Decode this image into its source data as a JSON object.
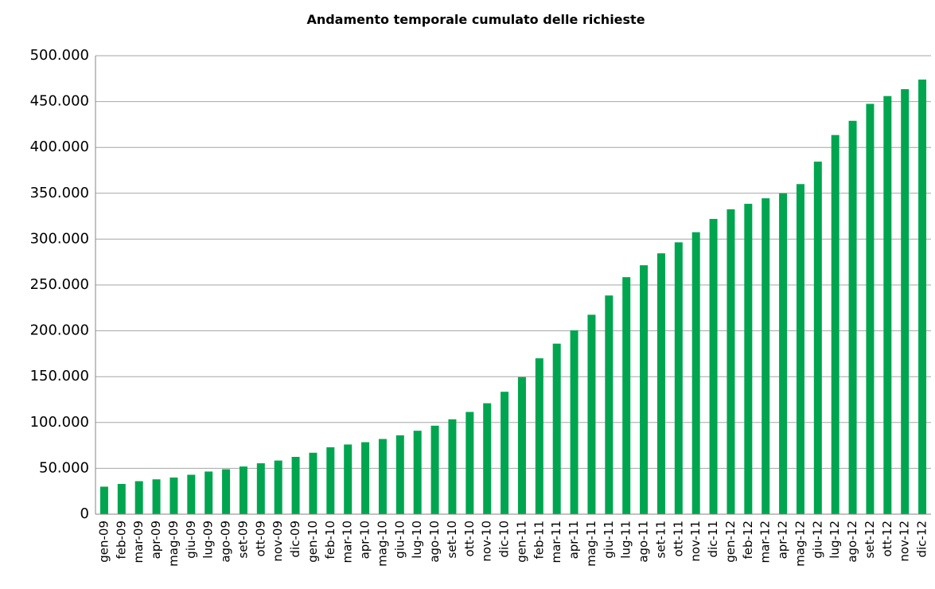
{
  "chart_data": {
    "type": "bar",
    "title": "Andamento temporale cumulato delle richieste",
    "categories": [
      "gen-09",
      "feb-09",
      "mar-09",
      "apr-09",
      "mag-09",
      "giu-09",
      "lug-09",
      "ago-09",
      "set-09",
      "ott-09",
      "nov-09",
      "dic-09",
      "gen-10",
      "feb-10",
      "mar-10",
      "apr-10",
      "mag-10",
      "giu-10",
      "lug-10",
      "ago-10",
      "set-10",
      "ott-10",
      "nov-10",
      "dic-10",
      "gen-11",
      "feb-11",
      "mar-11",
      "apr-11",
      "mag-11",
      "giu-11",
      "lug-11",
      "ago-11",
      "set-11",
      "ott-11",
      "nov-11",
      "dic-11",
      "gen-12",
      "feb-12",
      "mar-12",
      "apr-12",
      "mag-12",
      "giu-12",
      "lug-12",
      "ago-12",
      "set-12",
      "ott-12",
      "nov-12",
      "dic-12"
    ],
    "values": [
      30000,
      33000,
      36000,
      38000,
      40000,
      43000,
      46500,
      49000,
      52000,
      55500,
      58500,
      62500,
      67000,
      73000,
      76000,
      78500,
      82000,
      86000,
      91000,
      96500,
      103500,
      111500,
      121000,
      133500,
      149500,
      170000,
      186000,
      200500,
      217500,
      238500,
      258500,
      271500,
      284500,
      296500,
      307500,
      322000,
      332500,
      338500,
      344500,
      350000,
      360000,
      384500,
      413500,
      429000,
      447500,
      456000,
      463500,
      474000
    ],
    "color": "#00a54f",
    "ylim": [
      0,
      500000
    ],
    "yticks": [
      0,
      {
        "value": 50000,
        "label": "50.000"
      },
      {
        "value": 100000,
        "label": "100.000"
      },
      {
        "value": 150000,
        "label": "150.000"
      },
      {
        "value": 200000,
        "label": "200.000"
      },
      {
        "value": 250000,
        "label": "250.000"
      },
      {
        "value": 300000,
        "label": "300.000"
      },
      {
        "value": 350000,
        "label": "350.000"
      },
      {
        "value": 400000,
        "label": "400.000"
      },
      {
        "value": 450000,
        "label": "450.000"
      },
      {
        "value": 500000,
        "label": "500.000"
      }
    ],
    "grid": true
  }
}
